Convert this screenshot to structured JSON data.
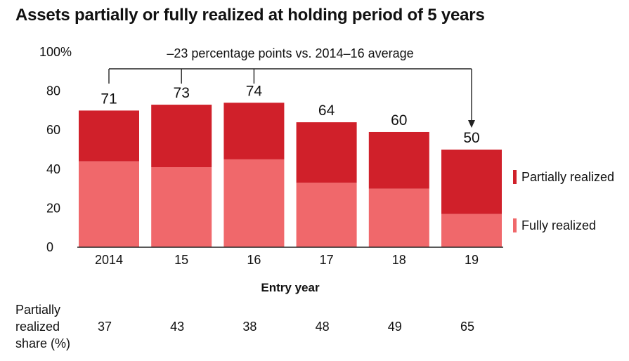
{
  "title": "Assets partially or fully realized at holding period of 5 years",
  "colors": {
    "partial": "#d0202a",
    "full": "#f0686b"
  },
  "chart_data": {
    "type": "bar",
    "stacked": true,
    "categories": [
      "2014",
      "15",
      "16",
      "17",
      "18",
      "19"
    ],
    "series": [
      {
        "name": "Fully realized",
        "values": [
          44,
          41,
          45,
          33,
          30,
          17
        ],
        "color": "#f0686b"
      },
      {
        "name": "Partially realized",
        "values": [
          26,
          32,
          29,
          31,
          29,
          33
        ],
        "color": "#d0202a"
      }
    ],
    "totals": [
      71,
      73,
      74,
      64,
      60,
      50
    ],
    "xlabel": "Entry year",
    "ylim": [
      0,
      100
    ],
    "yticks": [
      "0",
      "20",
      "40",
      "60",
      "80",
      "100%"
    ],
    "annotation": "–23 percentage points vs. 2014–16 average",
    "legend": [
      "Partially realized",
      "Fully realized"
    ],
    "legend_position": "right",
    "table": {
      "label_lines": [
        "Partially",
        "realized",
        "share (%)"
      ],
      "values": [
        "37",
        "43",
        "38",
        "48",
        "49",
        "65"
      ]
    }
  }
}
